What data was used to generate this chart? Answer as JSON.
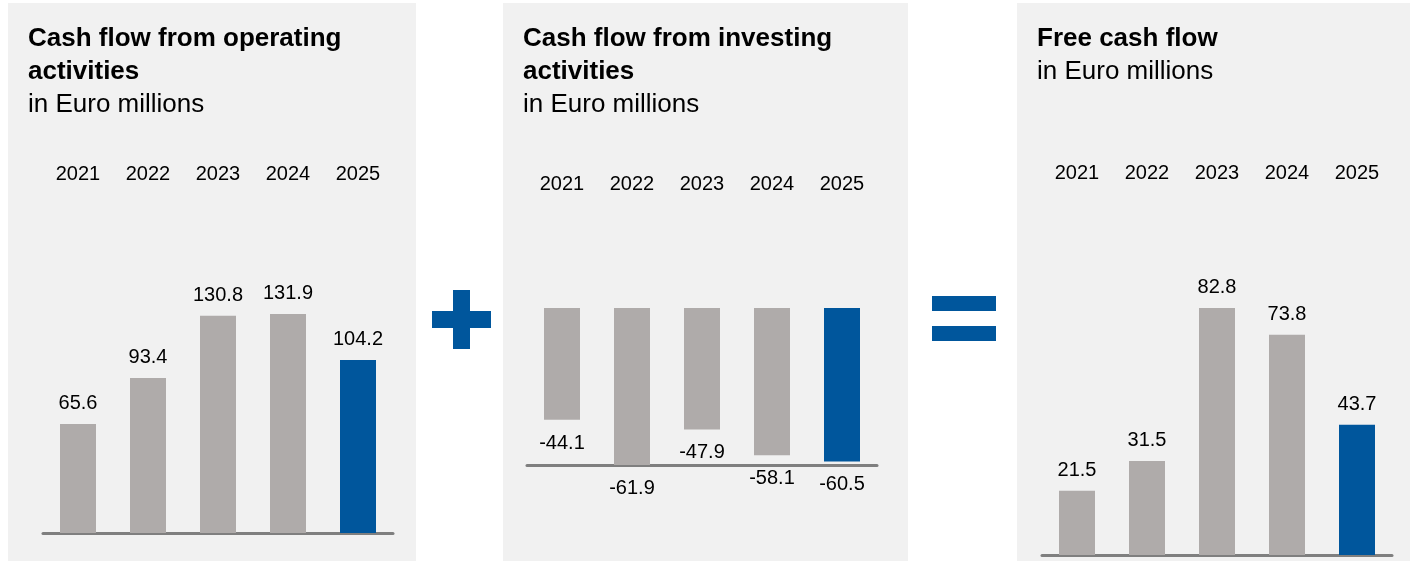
{
  "chart_data": [
    {
      "type": "bar",
      "title": "Cash flow from operating activities",
      "subtitle": "in Euro millions",
      "categories": [
        "2021",
        "2022",
        "2023",
        "2024",
        "2025"
      ],
      "values": [
        65.6,
        93.4,
        130.8,
        131.9,
        104.2
      ],
      "colors": [
        "#afabaa",
        "#afabaa",
        "#afabaa",
        "#afabaa",
        "#00569c"
      ],
      "data_labels": true
    },
    {
      "type": "bar",
      "title": "Cash flow from investing activities",
      "subtitle": "in Euro millions",
      "categories": [
        "2021",
        "2022",
        "2023",
        "2024",
        "2025"
      ],
      "values": [
        -44.1,
        -61.9,
        -47.9,
        -58.1,
        -60.5
      ],
      "colors": [
        "#afabaa",
        "#afabaa",
        "#afabaa",
        "#afabaa",
        "#00569c"
      ],
      "data_labels": true
    },
    {
      "type": "bar",
      "title": "Free cash flow",
      "subtitle": "in Euro millions",
      "categories": [
        "2021",
        "2022",
        "2023",
        "2024",
        "2025"
      ],
      "values": [
        21.5,
        31.5,
        82.8,
        73.8,
        43.7
      ],
      "colors": [
        "#afabaa",
        "#afabaa",
        "#afabaa",
        "#afabaa",
        "#00569c"
      ],
      "data_labels": true
    }
  ]
}
